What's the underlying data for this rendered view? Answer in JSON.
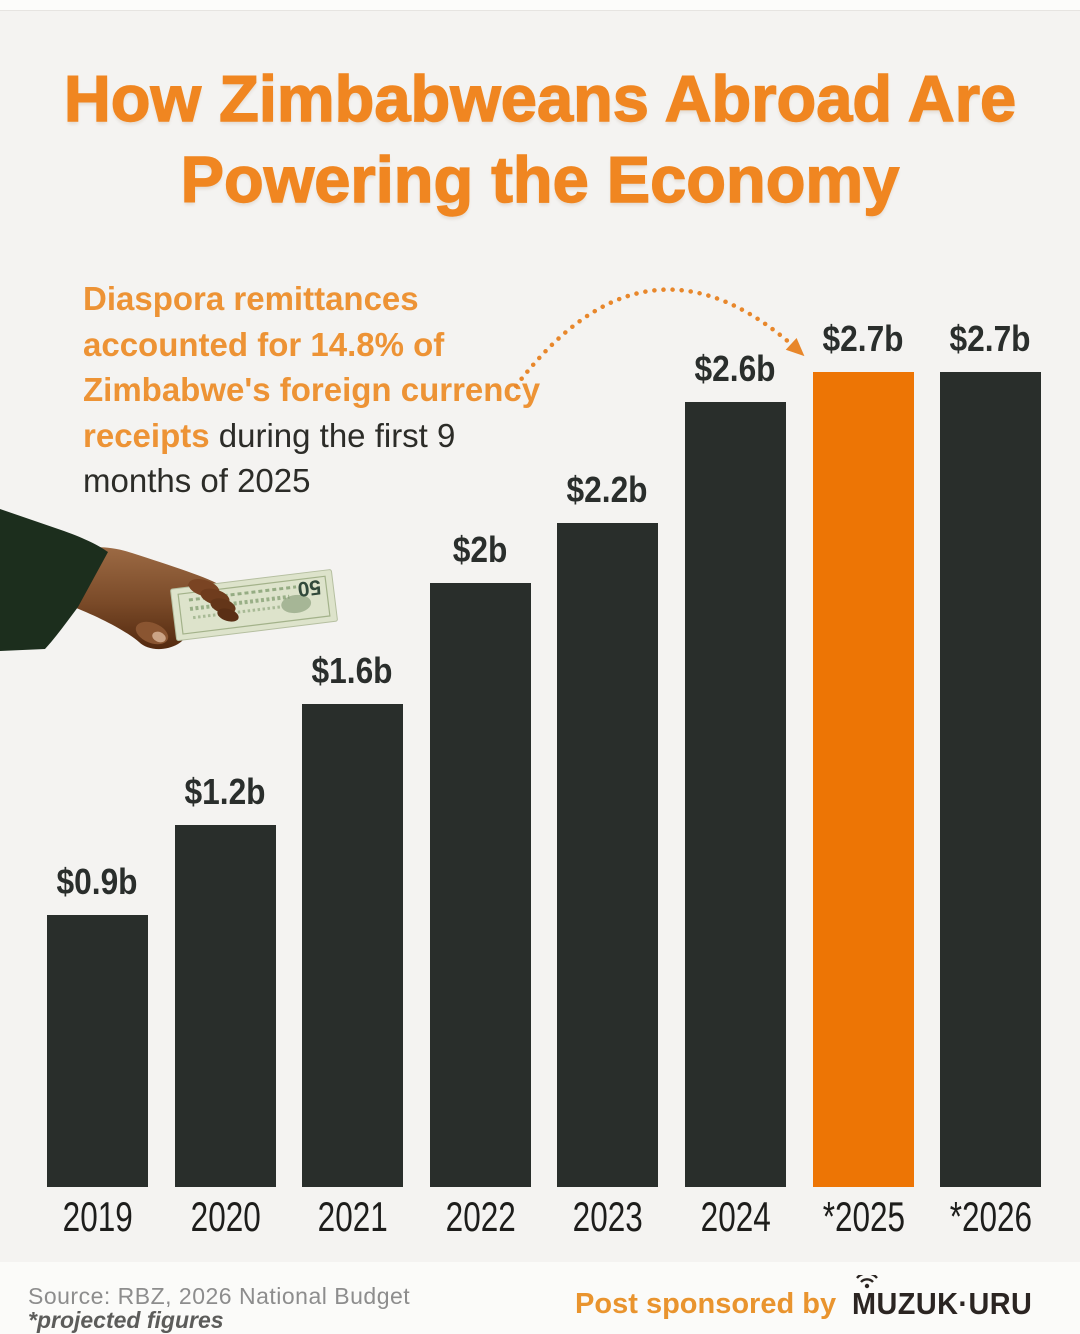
{
  "title": {
    "lines": [
      "How Zimbabweans Abroad Are",
      "Powering the Economy"
    ]
  },
  "callout": {
    "text": "Diaspora remittances accounted for 14.8% of Zimbabwe's foreign currency receipts during the first 9 months of 2025",
    "lines": [
      [
        {
          "text": "Diaspora remittances",
          "highlight": true
        }
      ],
      [
        {
          "text": "accounted for 14.8% of",
          "highlight": true
        }
      ],
      [
        {
          "text": "Zimbabwe's foreign currency",
          "highlight": true
        }
      ],
      [
        {
          "text": "receipts",
          "highlight": true
        },
        {
          "text": " during the first 9",
          "highlight": false
        }
      ],
      [
        {
          "text": "months of 2025",
          "highlight": false
        }
      ]
    ]
  },
  "chart_data": {
    "type": "bar",
    "categories": [
      "2019",
      "2020",
      "2021",
      "2022",
      "2023",
      "2024",
      "*2025",
      "*2026"
    ],
    "values": [
      0.9,
      1.2,
      1.6,
      2.0,
      2.2,
      2.6,
      2.7,
      2.7
    ],
    "value_labels": [
      "$0.9b",
      "$1.2b",
      "$1.6b",
      "$2b",
      "$2.2b",
      "$2.6b",
      "$2.7b",
      "$2.7b"
    ],
    "unit": "USD billions",
    "highlight_category": "*2025",
    "highlight_index": 6,
    "ylim": [
      0,
      2.9
    ],
    "grid": false,
    "legend": false,
    "annotation": {
      "target": "*2025",
      "style": "dotted-arc-arrow"
    }
  },
  "illustration": {
    "name": "hand-giving-banknote",
    "banknote_denomination": "50"
  },
  "footer": {
    "source": "Source: RBZ, 2026 National Budget",
    "note": "*projected figures",
    "sponsor_prefix": "Post sponsored by",
    "sponsor_name": "MUZUK·URU"
  },
  "colors": {
    "background": "#F4F3F1",
    "page": "#FBFBF9",
    "title_orange": "#F08621",
    "text_orange": "#ED9335",
    "bar_dark": "#292E2B",
    "bar_highlight": "#ED7505",
    "arrow_orange": "#E8872B",
    "label_dark": "#2A2E2C",
    "year_dark": "#1D1D1B",
    "source_gray": "#8D8D8D",
    "note_gray": "#5C5C5A",
    "sponsor_orange": "#E9942E",
    "logo_dark": "#2B2522",
    "sleeve_green": "#1C2E1D"
  }
}
